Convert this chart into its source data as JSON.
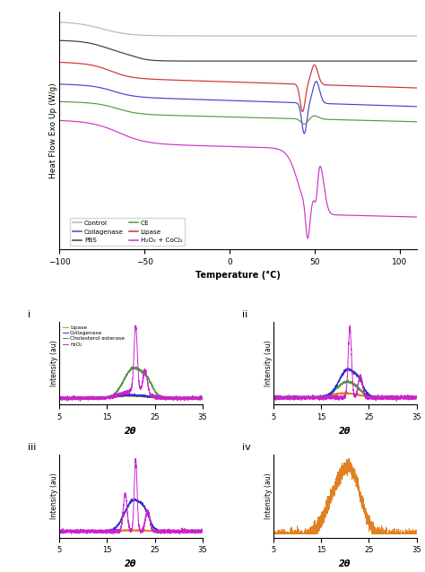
{
  "dsc": {
    "xlim": [
      -100,
      110
    ],
    "ylabel": "Heat Flow Exo Up (W/g)",
    "xlabel": "Temperature (°C)",
    "xticks": [
      -100,
      -50,
      0,
      50,
      100
    ]
  },
  "xrd": {
    "xlim": [
      5,
      35
    ],
    "xticks": [
      5,
      15,
      25,
      35
    ],
    "xlabel": "2θ",
    "ylabel": "Intensity (au)"
  },
  "colors": {
    "control": "#b8b8b8",
    "pbs": "#3a3a3a",
    "lipase": "#cc3333",
    "collagenase": "#4444cc",
    "ce": "#559944",
    "h2o2": "#cc33cc",
    "xrd_lipase": "#e08020",
    "xrd_collagenase": "#3333cc",
    "xrd_chol": "#559944",
    "xrd_h2o2": "#cc22cc"
  }
}
